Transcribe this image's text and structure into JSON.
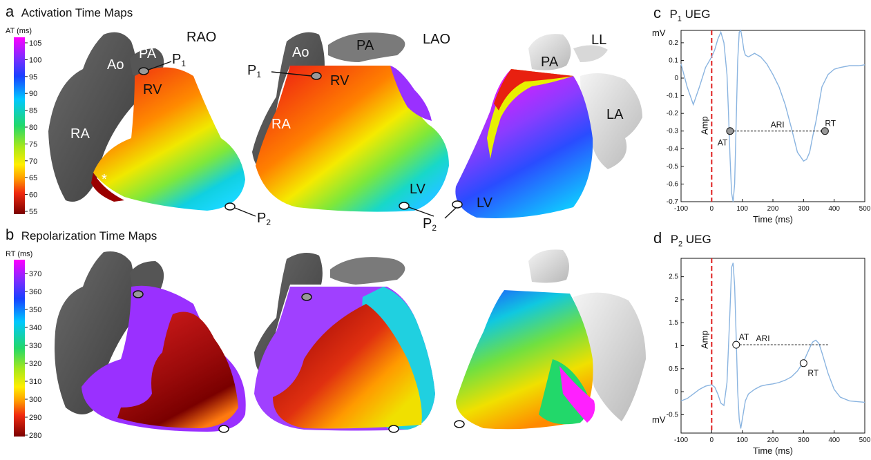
{
  "panels": {
    "a": {
      "letter": "a",
      "title": "Activation Time Maps",
      "colorbar_label": "AT (ms)",
      "ticks": [
        "105",
        "100",
        "95",
        "90",
        "85",
        "80",
        "75",
        "70",
        "65",
        "60",
        "55"
      ]
    },
    "b": {
      "letter": "b",
      "title": "Repolarization Time Maps",
      "colorbar_label": "RT (ms)",
      "ticks": [
        "370",
        "360",
        "350",
        "340",
        "330",
        "320",
        "310",
        "300",
        "290",
        "280"
      ]
    },
    "c": {
      "letter": "c",
      "title_pre": "P",
      "title_sub": "1",
      "title_post": " UEG"
    },
    "d": {
      "letter": "d",
      "title_pre": "P",
      "title_sub": "2",
      "title_post": " UEG"
    }
  },
  "views": {
    "rao": "RAO",
    "lao": "LAO",
    "ll": "LL"
  },
  "anatomy": {
    "ao": "Ao",
    "pa": "PA",
    "rv": "RV",
    "ra": "RA",
    "lv": "LV",
    "la": "LA",
    "star": "*"
  },
  "points": {
    "p": "P",
    "sub1": "1",
    "sub2": "2"
  },
  "ueg": {
    "ylabel": "mV",
    "xlabel": "Time (ms)",
    "amp": "Amp",
    "at": "AT",
    "rt": "RT",
    "ari": "ARI",
    "x_ticks": [
      "-100",
      "0",
      "100",
      "200",
      "300",
      "400",
      "500"
    ],
    "c_y_ticks": [
      "0.2",
      "0.1",
      "0",
      "-0.1",
      "-0.2",
      "-0.3",
      "-0.4",
      "-0.5",
      "-0.6",
      "-0.7"
    ],
    "d_y_ticks": [
      "2.5",
      "2",
      "1.5",
      "1",
      "0.5",
      "0",
      "-0.5"
    ]
  },
  "chart_data": [
    {
      "type": "line",
      "title": "P1 UEG",
      "xlabel": "Time (ms)",
      "ylabel": "mV",
      "xlim": [
        -100,
        500
      ],
      "ylim": [
        -0.7,
        0.27
      ],
      "series": [
        {
          "x": [
            -100,
            -80,
            -60,
            -40,
            -20,
            0,
            10,
            20,
            30,
            40,
            50,
            55,
            60,
            65,
            70,
            75,
            80,
            85,
            90,
            95,
            100,
            105,
            110,
            120,
            130,
            140,
            160,
            180,
            200,
            220,
            240,
            260,
            280,
            300,
            310,
            320,
            330,
            340,
            350,
            360,
            380,
            400,
            420,
            450,
            480,
            500
          ],
          "values": [
            0.08,
            -0.05,
            -0.15,
            -0.05,
            0.06,
            0.12,
            0.16,
            0.22,
            0.26,
            0.2,
            0.02,
            -0.2,
            -0.45,
            -0.65,
            -0.7,
            -0.6,
            -0.25,
            0.1,
            0.26,
            0.27,
            0.22,
            0.16,
            0.13,
            0.12,
            0.13,
            0.14,
            0.12,
            0.08,
            0.02,
            -0.05,
            -0.15,
            -0.28,
            -0.42,
            -0.47,
            -0.46,
            -0.42,
            -0.33,
            -0.25,
            -0.15,
            -0.05,
            0.02,
            0.05,
            0.06,
            0.07,
            0.07,
            0.075
          ]
        }
      ],
      "markers": {
        "at_x": 60,
        "rt_x": 370,
        "y": -0.3
      }
    },
    {
      "type": "line",
      "title": "P2 UEG",
      "xlabel": "Time (ms)",
      "ylabel": "mV",
      "xlim": [
        -100,
        500
      ],
      "ylim": [
        -0.9,
        2.9
      ],
      "series": [
        {
          "x": [
            -100,
            -80,
            -60,
            -40,
            -20,
            0,
            10,
            20,
            30,
            40,
            50,
            60,
            65,
            70,
            75,
            80,
            85,
            90,
            95,
            100,
            110,
            120,
            140,
            160,
            180,
            200,
            220,
            240,
            260,
            280,
            300,
            310,
            320,
            330,
            340,
            350,
            360,
            380,
            400,
            420,
            450,
            480,
            500
          ],
          "values": [
            -0.2,
            -0.15,
            -0.05,
            0.05,
            0.12,
            0.15,
            0.1,
            -0.05,
            -0.25,
            -0.3,
            0.2,
            1.8,
            2.7,
            2.8,
            2.3,
            1.2,
            0.0,
            -0.6,
            -0.8,
            -0.6,
            -0.2,
            -0.05,
            0.05,
            0.12,
            0.15,
            0.17,
            0.2,
            0.25,
            0.32,
            0.45,
            0.65,
            0.8,
            0.95,
            1.08,
            1.12,
            1.05,
            0.85,
            0.4,
            0.05,
            -0.12,
            -0.2,
            -0.22,
            -0.23
          ]
        }
      ],
      "markers": {
        "at_x": 80,
        "rt_x": 300,
        "at_y": 1.02,
        "rt_y": 0.62
      }
    }
  ]
}
